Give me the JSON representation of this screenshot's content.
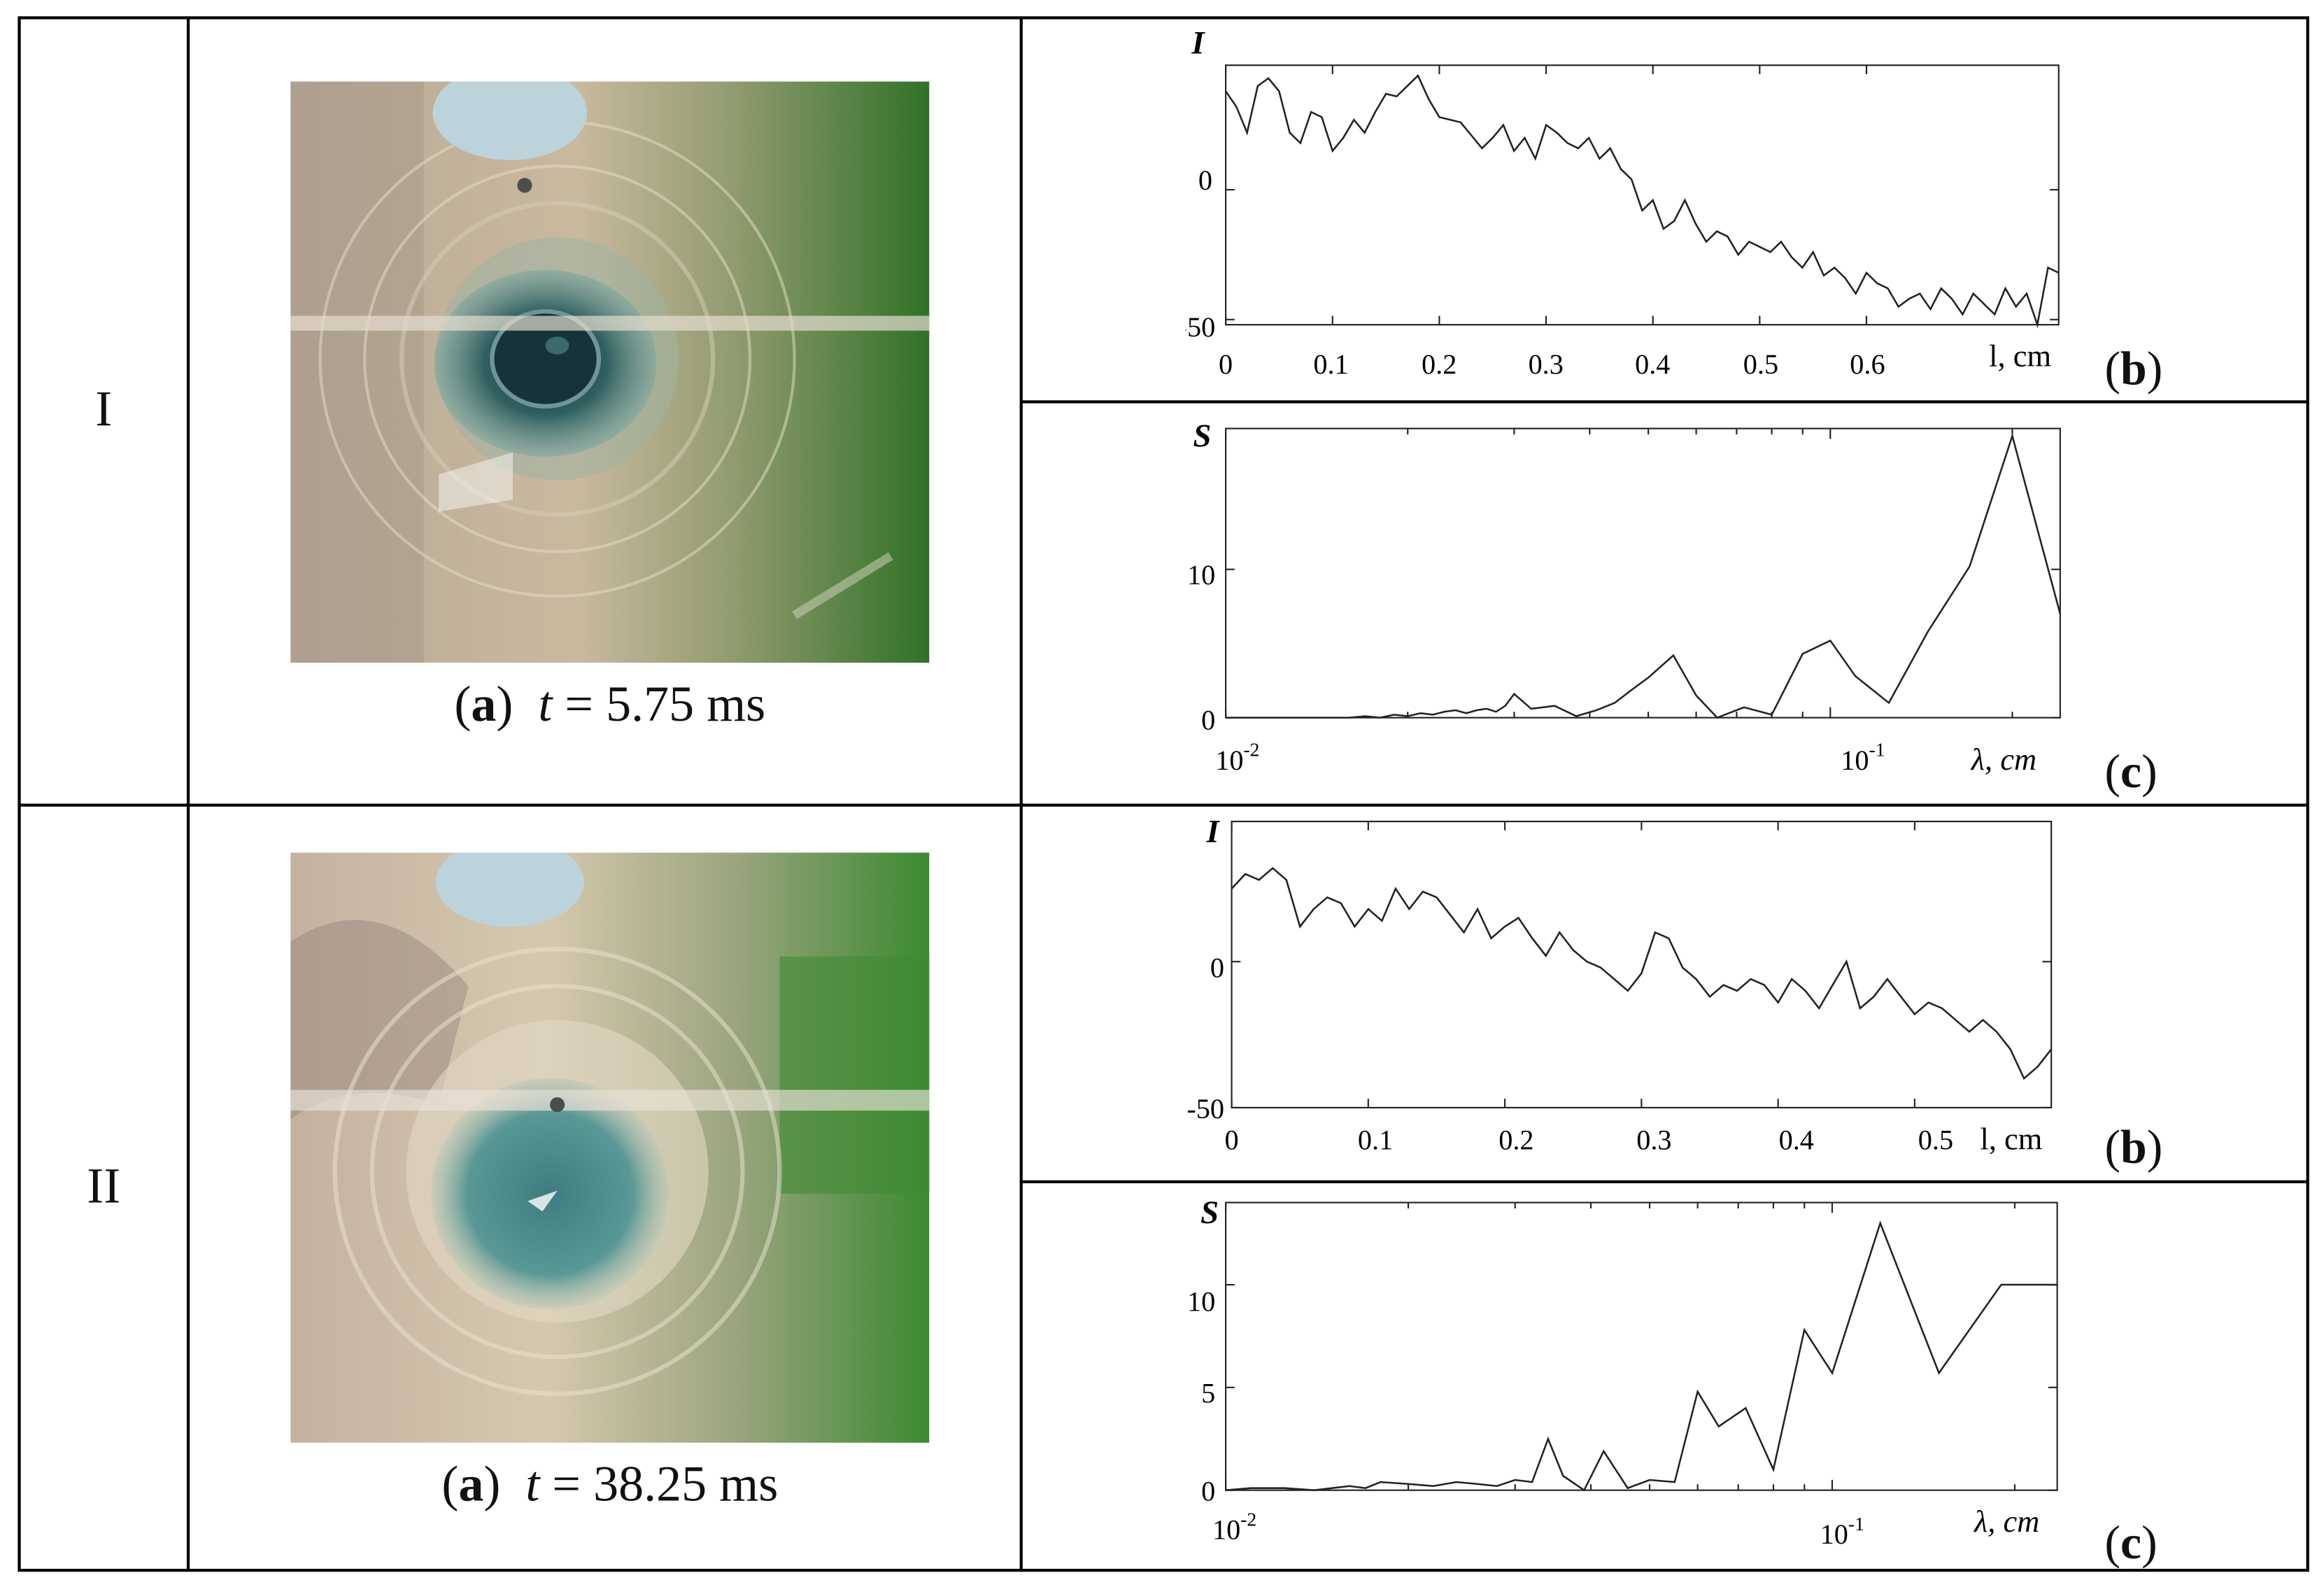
{
  "rows": [
    {
      "label": "I",
      "photo": {
        "letter": "a",
        "time_var": "t",
        "time_value": "5.75 ms",
        "colors": {
          "background": "#c8b79a",
          "green": "#3e7a2c",
          "dye": "#2f5f60",
          "nozzle": "#bcd3dc"
        }
      },
      "charts": [
        {
          "letter": "b",
          "type": "line",
          "ylabel": "I",
          "xlabel": "l, cm",
          "x_tick_labels": [
            "0",
            "0.1",
            "0.2",
            "0.3",
            "0.4",
            "0.5",
            "0.6"
          ],
          "y_tick_labels": [
            "0",
            "-50"
          ],
          "chart_data": {
            "type": "line",
            "xlim": [
              0,
              0.78
            ],
            "ylim": [
              -52,
              48
            ],
            "x_ticks": [
              0,
              0.1,
              0.2,
              0.3,
              0.4,
              0.5,
              0.6
            ],
            "y_ticks": [
              0,
              -50
            ],
            "x": [
              0,
              0.01,
              0.02,
              0.03,
              0.04,
              0.05,
              0.06,
              0.07,
              0.08,
              0.09,
              0.1,
              0.11,
              0.12,
              0.13,
              0.14,
              0.15,
              0.16,
              0.17,
              0.18,
              0.19,
              0.2,
              0.22,
              0.24,
              0.25,
              0.26,
              0.27,
              0.28,
              0.29,
              0.3,
              0.31,
              0.32,
              0.33,
              0.34,
              0.35,
              0.36,
              0.37,
              0.38,
              0.39,
              0.4,
              0.41,
              0.42,
              0.43,
              0.44,
              0.45,
              0.46,
              0.47,
              0.48,
              0.49,
              0.5,
              0.51,
              0.52,
              0.53,
              0.54,
              0.55,
              0.56,
              0.57,
              0.58,
              0.59,
              0.6,
              0.61,
              0.62,
              0.63,
              0.64,
              0.65,
              0.66,
              0.67,
              0.68,
              0.69,
              0.7,
              0.71,
              0.72,
              0.73,
              0.74,
              0.75,
              0.76,
              0.77,
              0.78
            ],
            "series": [
              {
                "values": [
                  38,
                  32,
                  22,
                  40,
                  43,
                  38,
                  22,
                  18,
                  30,
                  28,
                  15,
                  20,
                  27,
                  22,
                  30,
                  37,
                  36,
                  40,
                  44,
                  35,
                  28,
                  26,
                  16,
                  20,
                  25,
                  15,
                  20,
                  12,
                  25,
                  22,
                  18,
                  16,
                  20,
                  12,
                  16,
                  8,
                  4,
                  -8,
                  -4,
                  -15,
                  -12,
                  -4,
                  -13,
                  -20,
                  -16,
                  -18,
                  -25,
                  -20,
                  -22,
                  -24,
                  -20,
                  -26,
                  -30,
                  -24,
                  -33,
                  -30,
                  -34,
                  -40,
                  -32,
                  -36,
                  -38,
                  -45,
                  -42,
                  -40,
                  -46,
                  -38,
                  -42,
                  -48,
                  -40,
                  -44,
                  -48,
                  -38,
                  -45,
                  -40,
                  -52,
                  -30,
                  -32
                ]
              }
            ]
          }
        },
        {
          "letter": "c",
          "type": "line",
          "ylabel": "S",
          "xlabel": "λ, cm",
          "x_tick_labels": [
            "10",
            "-2",
            "10",
            "-1"
          ],
          "y_tick_labels": [
            "0",
            "10"
          ],
          "chart_data": {
            "type": "line",
            "x_scale": "log",
            "xlim": [
              0.01,
              0.24
            ],
            "ylim": [
              0,
              19.5
            ],
            "y_ticks": [
              0,
              10
            ],
            "x": [
              0.01,
              0.011,
              0.012,
              0.0135,
              0.015,
              0.016,
              0.017,
              0.018,
              0.019,
              0.02,
              0.021,
              0.022,
              0.023,
              0.024,
              0.025,
              0.026,
              0.027,
              0.028,
              0.029,
              0.03,
              0.032,
              0.035,
              0.038,
              0.041,
              0.044,
              0.047,
              0.05,
              0.055,
              0.06,
              0.065,
              0.072,
              0.08,
              0.09,
              0.1,
              0.11,
              0.125,
              0.145,
              0.17,
              0.2,
              0.24
            ],
            "series": [
              {
                "values": [
                  0,
                  0,
                  0,
                  0,
                  0,
                  0,
                  0.1,
                  0,
                  0.2,
                  0.1,
                  0.3,
                  0.2,
                  0.4,
                  0.5,
                  0.3,
                  0.5,
                  0.6,
                  0.4,
                  0.8,
                  1.6,
                  0.6,
                  0.8,
                  0.1,
                  0.5,
                  1.0,
                  1.9,
                  2.7,
                  4.2,
                  1.5,
                  0.0,
                  0.7,
                  0.2,
                  4.3,
                  5.2,
                  2.8,
                  1.0,
                  5.8,
                  10.2,
                  19.0,
                  7.0
                ]
              }
            ]
          }
        }
      ]
    },
    {
      "label": "II",
      "photo": {
        "letter": "a",
        "time_var": "t",
        "time_value": "38.25 ms",
        "colors": {
          "background": "#d3c4a8",
          "green": "#418a36",
          "dye": "#4f8a8c",
          "nozzle": "#bcd3dc"
        }
      },
      "charts": [
        {
          "letter": "b",
          "type": "line",
          "ylabel": "I",
          "xlabel": "l, cm",
          "x_tick_labels": [
            "0",
            "0.1",
            "0.2",
            "0.3",
            "0.4",
            "0.5"
          ],
          "y_tick_labels": [
            "0",
            "-50"
          ],
          "chart_data": {
            "type": "line",
            "xlim": [
              0,
              0.6
            ],
            "ylim": [
              -50,
              48
            ],
            "x_ticks": [
              0,
              0.1,
              0.2,
              0.3,
              0.4,
              0.5
            ],
            "y_ticks": [
              0,
              -50
            ],
            "x": [
              0,
              0.01,
              0.02,
              0.03,
              0.04,
              0.05,
              0.06,
              0.07,
              0.08,
              0.09,
              0.1,
              0.11,
              0.12,
              0.13,
              0.14,
              0.15,
              0.16,
              0.17,
              0.18,
              0.19,
              0.2,
              0.21,
              0.22,
              0.23,
              0.24,
              0.25,
              0.26,
              0.27,
              0.28,
              0.29,
              0.3,
              0.31,
              0.32,
              0.33,
              0.34,
              0.35,
              0.36,
              0.37,
              0.38,
              0.39,
              0.4,
              0.41,
              0.42,
              0.43,
              0.44,
              0.45,
              0.46,
              0.47,
              0.48,
              0.49,
              0.5,
              0.51,
              0.52,
              0.53,
              0.54,
              0.55,
              0.56,
              0.57,
              0.58,
              0.59,
              0.6
            ],
            "series": [
              {
                "values": [
                  25,
                  30,
                  28,
                  32,
                  28,
                  12,
                  18,
                  22,
                  20,
                  12,
                  18,
                  14,
                  25,
                  18,
                  24,
                  22,
                  16,
                  10,
                  18,
                  8,
                  12,
                  15,
                  8,
                  2,
                  10,
                  4,
                  0,
                  -2,
                  -6,
                  -10,
                  -4,
                  10,
                  8,
                  -2,
                  -6,
                  -12,
                  -8,
                  -10,
                  -6,
                  -8,
                  -14,
                  -6,
                  -10,
                  -16,
                  -8,
                  0,
                  -16,
                  -12,
                  -6,
                  -12,
                  -18,
                  -14,
                  -16,
                  -20,
                  -24,
                  -20,
                  -24,
                  -30,
                  -40,
                  -36,
                  -30
                ]
              }
            ]
          }
        },
        {
          "letter": "c",
          "type": "line",
          "ylabel": "S",
          "xlabel": "λ, cm",
          "x_tick_labels": [
            "10",
            "-2",
            "10",
            "-1"
          ],
          "y_tick_labels": [
            "0",
            "5",
            "10"
          ],
          "chart_data": {
            "type": "line",
            "x_scale": "log",
            "xlim": [
              0.01,
              0.235
            ],
            "ylim": [
              0,
              14
            ],
            "y_ticks": [
              0,
              5,
              10
            ],
            "x": [
              0.01,
              0.011,
              0.0125,
              0.014,
              0.016,
              0.017,
              0.018,
              0.02,
              0.022,
              0.024,
              0.026,
              0.028,
              0.03,
              0.032,
              0.034,
              0.036,
              0.039,
              0.042,
              0.046,
              0.05,
              0.055,
              0.06,
              0.065,
              0.072,
              0.08,
              0.09,
              0.1,
              0.12,
              0.15,
              0.19,
              0.235
            ],
            "series": [
              {
                "values": [
                  0,
                  0.1,
                  0.1,
                  0,
                  0.2,
                  0.1,
                  0.4,
                  0.3,
                  0.2,
                  0.4,
                  0.3,
                  0.2,
                  0.5,
                  0.4,
                  2.5,
                  0.7,
                  0.0,
                  1.9,
                  0.1,
                  0.5,
                  0.4,
                  4.8,
                  3.1,
                  4.0,
                  1.0,
                  7.8,
                  5.7,
                  13.0,
                  5.7,
                  10.0,
                  10.0
                ]
              }
            ]
          }
        }
      ]
    }
  ]
}
